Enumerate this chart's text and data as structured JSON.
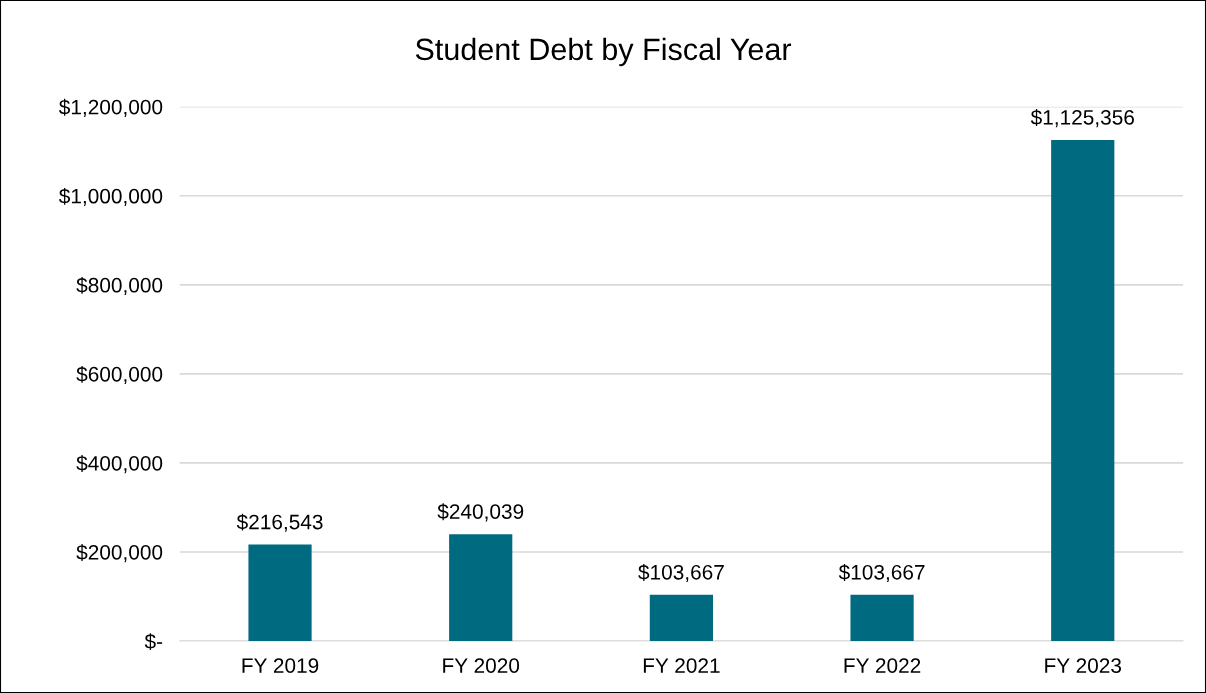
{
  "chart_data": {
    "type": "bar",
    "title": "Student Debt by Fiscal Year",
    "categories": [
      "FY 2019",
      "FY 2020",
      "FY 2021",
      "FY 2022",
      "FY 2023"
    ],
    "values": [
      216543,
      240039,
      103667,
      103667,
      1125356
    ],
    "value_labels": [
      "$216,543",
      "$240,039",
      "$103,667",
      "$103,667",
      "$1,125,356"
    ],
    "color": "#006a80",
    "ylim": [
      0,
      1200000
    ],
    "yticks": [
      {
        "value": 0,
        "label": "$-"
      },
      {
        "value": 200000,
        "label": "$200,000"
      },
      {
        "value": 400000,
        "label": "$400,000"
      },
      {
        "value": 600000,
        "label": "$600,000"
      },
      {
        "value": 800000,
        "label": "$800,000"
      },
      {
        "value": 1000000,
        "label": "$1,000,000"
      },
      {
        "value": 1200000,
        "label": "$1,200,000"
      }
    ],
    "grid": "y",
    "legend": false
  }
}
